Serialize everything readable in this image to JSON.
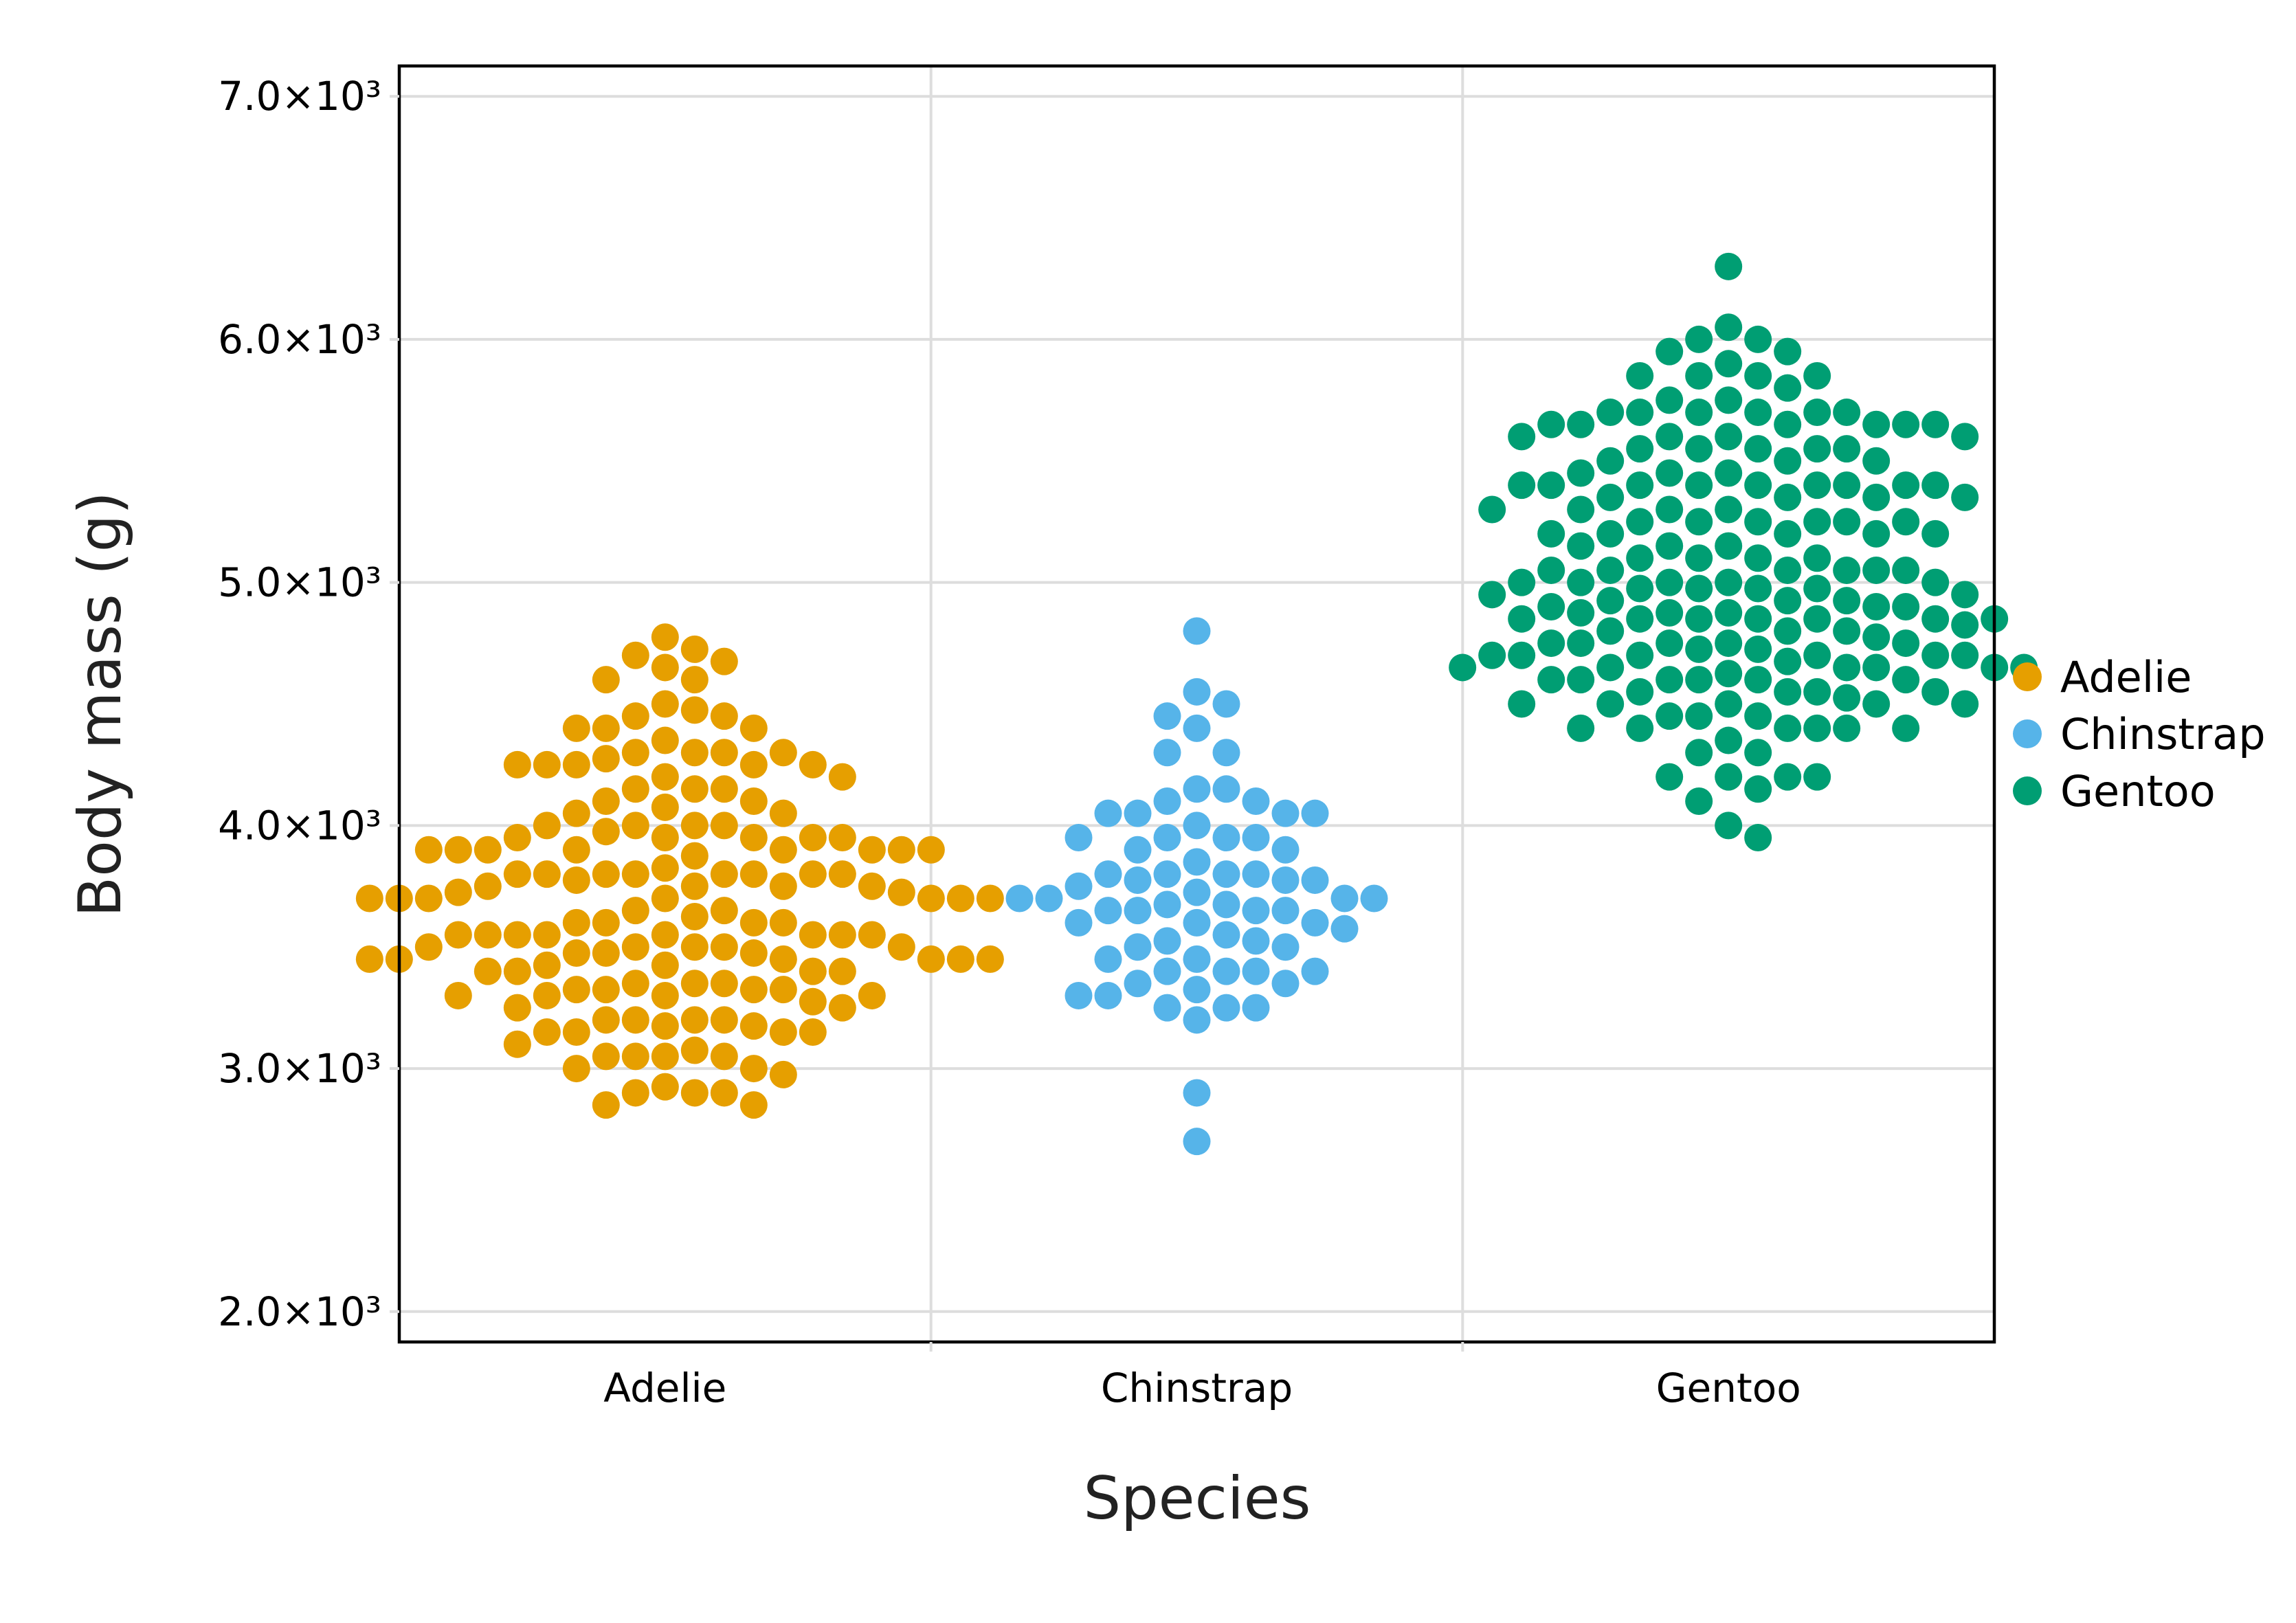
{
  "chart_data": {
    "type": "scatter",
    "subtype": "beeswarm",
    "title": "",
    "xlabel": "Species",
    "ylabel": "Body mass (g)",
    "categories": [
      "Adelie",
      "Chinstrap",
      "Gentoo"
    ],
    "ylim": [
      1875,
      7125
    ],
    "y_ticks": [
      {
        "value": 2000,
        "label": "2.0×10³"
      },
      {
        "value": 3000,
        "label": "3.0×10³"
      },
      {
        "value": 4000,
        "label": "4.0×10³"
      },
      {
        "value": 5000,
        "label": "5.0×10³"
      },
      {
        "value": 6000,
        "label": "6.0×10³"
      },
      {
        "value": 7000,
        "label": "7.0×10³"
      }
    ],
    "grid": true,
    "legend": {
      "position": "right",
      "entries": [
        "Adelie",
        "Chinstrap",
        "Gentoo"
      ]
    },
    "series": [
      {
        "name": "Adelie",
        "color": "#E69F00",
        "values": [
          3750,
          3800,
          3250,
          3450,
          3650,
          3625,
          4675,
          3475,
          4250,
          3300,
          3700,
          3200,
          3800,
          4400,
          3700,
          3450,
          4500,
          3325,
          4200,
          3400,
          3600,
          3800,
          3950,
          3800,
          3800,
          3550,
          3200,
          3150,
          3950,
          3250,
          3900,
          3300,
          3900,
          3325,
          4150,
          3950,
          3550,
          3300,
          4650,
          3150,
          3900,
          3100,
          4400,
          3000,
          4600,
          3425,
          2975,
          3450,
          4150,
          3500,
          4300,
          3450,
          4050,
          2900,
          3700,
          3550,
          3800,
          2850,
          3750,
          3150,
          4400,
          3600,
          4050,
          2850,
          3950,
          3350,
          4100,
          3050,
          4450,
          3600,
          3900,
          3550,
          4150,
          3700,
          4250,
          3700,
          3900,
          3550,
          4000,
          3200,
          4700,
          3800,
          4200,
          3350,
          3550,
          3800,
          3500,
          3950,
          3600,
          3550,
          4300,
          3400,
          4450,
          3300,
          4300,
          3700,
          4350,
          2900,
          4100,
          3725,
          4725,
          3075,
          4250,
          2925,
          3550,
          3750,
          3900,
          3175,
          4775,
          3825,
          4600,
          3200,
          4275,
          3900,
          4075,
          2900,
          3775,
          3350,
          3325,
          3150,
          3500,
          3450,
          3875,
          3050,
          4000,
          3275,
          4300,
          3050,
          4000,
          3325,
          3500,
          3500,
          4475,
          3425,
          3900,
          3175,
          3975,
          3400,
          4250,
          3400,
          3475,
          3050,
          3725,
          3000,
          3650,
          4250,
          3475,
          3450,
          3750,
          3700,
          4000
        ]
      },
      {
        "name": "Chinstrap",
        "color": "#56B4E9",
        "values": [
          3500,
          3900,
          3650,
          3525,
          3725,
          3950,
          3250,
          3750,
          4150,
          3700,
          3800,
          3775,
          3700,
          4050,
          3575,
          4050,
          3300,
          3700,
          3450,
          4400,
          3600,
          3400,
          2900,
          3800,
          3300,
          4150,
          3400,
          3800,
          3700,
          4550,
          3200,
          4300,
          3350,
          4100,
          3600,
          3900,
          3850,
          4800,
          2700,
          4500,
          3950,
          3650,
          3550,
          3500,
          3675,
          4450,
          3400,
          4300,
          3250,
          3675,
          3325,
          3950,
          3600,
          4050,
          3350,
          3450,
          3250,
          4050,
          3800,
          3525,
          3950,
          3650,
          3650,
          4000,
          3400,
          3775,
          4100,
          3775
        ]
      },
      {
        "name": "Gentoo",
        "color": "#009E73",
        "values": [
          4500,
          5700,
          4450,
          5700,
          5400,
          4550,
          4800,
          5200,
          4400,
          5150,
          4650,
          5550,
          4650,
          5850,
          4200,
          5850,
          4150,
          6300,
          4800,
          5350,
          5700,
          5000,
          4400,
          5050,
          5000,
          5100,
          4100,
          5650,
          4600,
          5550,
          5250,
          4700,
          5050,
          6050,
          5150,
          5400,
          4950,
          5250,
          4350,
          5350,
          3950,
          5700,
          4300,
          4750,
          5550,
          4900,
          4200,
          5400,
          5100,
          5300,
          4850,
          5300,
          4400,
          5000,
          4600,
          5050,
          4600,
          5200,
          4400,
          5100,
          4650,
          5950,
          4700,
          5750,
          4650,
          5500,
          4650,
          5450,
          4200,
          5700,
          5650,
          4400,
          5750,
          5350,
          4550,
          5400,
          4650,
          5600,
          4550,
          5550,
          4600,
          6000,
          4750,
          5550,
          4400,
          5400,
          4750,
          5900,
          4500,
          5200,
          4300,
          5650,
          4675,
          5400,
          4500,
          5250,
          4550,
          5950,
          4000,
          5600,
          4850,
          5850,
          4600,
          5600,
          4850,
          5050,
          4700,
          5500,
          4750,
          5300,
          4700,
          5300,
          4900,
          6000,
          4700,
          5600,
          4850,
          5400,
          4900,
          5100,
          4700,
          5000,
          4850,
          5400,
          5150,
          4500,
          4800,
          4450,
          5450,
          5800,
          4775,
          5250,
          5200,
          4625,
          4975,
          5050,
          5650,
          5200,
          4925,
          4975,
          4875,
          4725,
          5000,
          5250,
          4750,
          5500,
          4975,
          4850,
          4850,
          5450,
          5700,
          4925,
          5250,
          5650,
          4500,
          5400,
          4200,
          4925,
          4525,
          4825,
          4950,
          4600,
          5350,
          4450,
          5650,
          5850,
          4875,
          5050,
          4875,
          4725,
          4975
        ]
      }
    ]
  }
}
